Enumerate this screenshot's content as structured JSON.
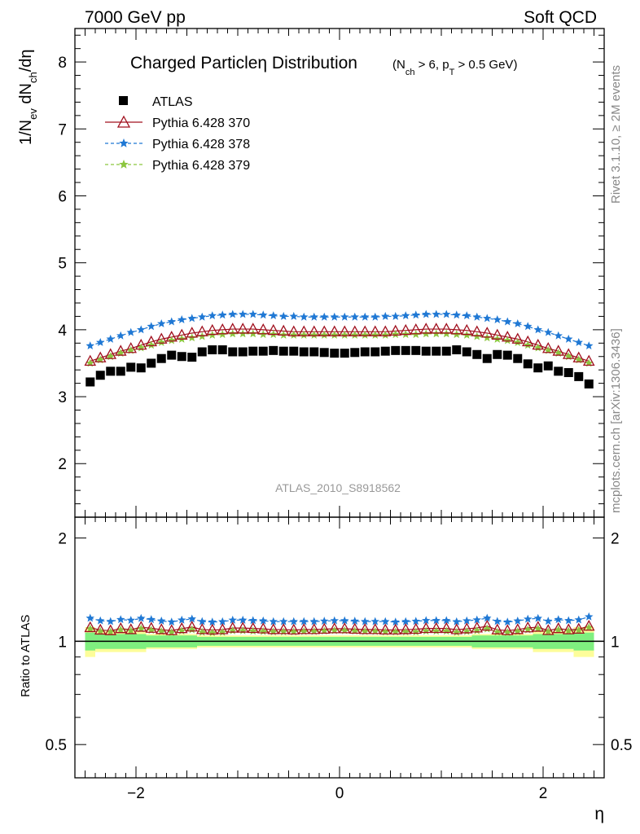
{
  "header": {
    "energy": "7000 GeV pp",
    "category": "Soft QCD"
  },
  "side": {
    "rivet": "Rivet 3.1.10, ≥ 2M events",
    "mcplots": "mcplots.cern.ch [arXiv:1306.3436]"
  },
  "colors": {
    "atlas": "#000000",
    "p370": "#a0101e",
    "p378": "#1f78d4",
    "p379": "#8cc63f",
    "band_inner": "#7fef7f",
    "band_outer": "#fdfd9a"
  },
  "chart_data": {
    "type": "scatter",
    "title": "Charged Particleη Distribution",
    "title_sub": "(N_ch > 6, p_T > 0.5 GeV)",
    "analysis": "ATLAS_2010_S8918562",
    "xlabel": "η",
    "ylabel": "1/N_ev dN_ch/dη",
    "ratio_ylabel": "Ratio to ATLAS",
    "xlim": [
      -2.6,
      2.6
    ],
    "ylim": [
      1.2,
      8.5
    ],
    "ratio_ylim": [
      0.4,
      2.3
    ],
    "ratio_scale": "log",
    "xticks": [
      -2,
      0,
      2
    ],
    "xtick_labels": [
      "−2",
      "0",
      "2"
    ],
    "yticks": [
      2,
      3,
      4,
      5,
      6,
      7,
      8
    ],
    "ratio_yticks": [
      0.5,
      1,
      2
    ],
    "legend_position": "top-left",
    "x": [
      -2.45,
      -2.35,
      -2.25,
      -2.15,
      -2.05,
      -1.95,
      -1.85,
      -1.75,
      -1.65,
      -1.55,
      -1.45,
      -1.35,
      -1.25,
      -1.15,
      -1.05,
      -0.95,
      -0.85,
      -0.75,
      -0.65,
      -0.55,
      -0.45,
      -0.35,
      -0.25,
      -0.15,
      -0.05,
      0.05,
      0.15,
      0.25,
      0.35,
      0.45,
      0.55,
      0.65,
      0.75,
      0.85,
      0.95,
      1.05,
      1.15,
      1.25,
      1.35,
      1.45,
      1.55,
      1.65,
      1.75,
      1.85,
      1.95,
      2.05,
      2.15,
      2.25,
      2.35,
      2.45
    ],
    "series": [
      {
        "name": "ATLAS",
        "marker": "square",
        "values": [
          3.22,
          3.32,
          3.38,
          3.38,
          3.44,
          3.43,
          3.5,
          3.57,
          3.62,
          3.6,
          3.59,
          3.67,
          3.7,
          3.7,
          3.67,
          3.67,
          3.68,
          3.68,
          3.69,
          3.68,
          3.68,
          3.67,
          3.67,
          3.66,
          3.65,
          3.65,
          3.66,
          3.67,
          3.67,
          3.68,
          3.69,
          3.69,
          3.69,
          3.68,
          3.68,
          3.68,
          3.7,
          3.67,
          3.63,
          3.57,
          3.63,
          3.62,
          3.57,
          3.49,
          3.43,
          3.46,
          3.38,
          3.36,
          3.3,
          3.19
        ]
      },
      {
        "name": "Pythia 6.428 370",
        "marker": "triangle",
        "values": [
          3.53,
          3.58,
          3.63,
          3.68,
          3.72,
          3.77,
          3.82,
          3.86,
          3.89,
          3.92,
          3.95,
          3.97,
          3.99,
          4.0,
          4.01,
          4.01,
          4.01,
          4.0,
          3.99,
          3.98,
          3.97,
          3.97,
          3.97,
          3.97,
          3.97,
          3.97,
          3.97,
          3.97,
          3.97,
          3.97,
          3.98,
          3.99,
          4.0,
          4.01,
          4.01,
          4.01,
          4.0,
          3.99,
          3.97,
          3.95,
          3.92,
          3.89,
          3.86,
          3.82,
          3.77,
          3.72,
          3.68,
          3.63,
          3.58,
          3.53
        ]
      },
      {
        "name": "Pythia 6.428 378",
        "marker": "star",
        "values": [
          3.76,
          3.81,
          3.86,
          3.91,
          3.96,
          4.0,
          4.05,
          4.09,
          4.12,
          4.15,
          4.17,
          4.19,
          4.21,
          4.22,
          4.23,
          4.23,
          4.23,
          4.22,
          4.21,
          4.2,
          4.2,
          4.19,
          4.19,
          4.19,
          4.19,
          4.19,
          4.19,
          4.19,
          4.19,
          4.2,
          4.2,
          4.21,
          4.22,
          4.23,
          4.23,
          4.23,
          4.22,
          4.21,
          4.19,
          4.17,
          4.15,
          4.12,
          4.09,
          4.05,
          4.0,
          3.96,
          3.91,
          3.86,
          3.81,
          3.76
        ]
      },
      {
        "name": "Pythia 6.428 379",
        "marker": "star",
        "values": [
          3.5,
          3.55,
          3.6,
          3.65,
          3.69,
          3.73,
          3.77,
          3.81,
          3.84,
          3.86,
          3.88,
          3.9,
          3.92,
          3.93,
          3.94,
          3.94,
          3.94,
          3.93,
          3.93,
          3.92,
          3.92,
          3.92,
          3.92,
          3.92,
          3.92,
          3.92,
          3.92,
          3.92,
          3.92,
          3.92,
          3.93,
          3.93,
          3.93,
          3.94,
          3.94,
          3.94,
          3.93,
          3.92,
          3.9,
          3.88,
          3.86,
          3.84,
          3.81,
          3.77,
          3.73,
          3.69,
          3.65,
          3.6,
          3.55,
          3.5
        ]
      }
    ],
    "ratio_bands": [
      {
        "x": [
          -2.5,
          -2.4
        ],
        "inner": [
          0.94,
          1.06
        ],
        "outer": [
          0.9,
          1.1
        ]
      },
      {
        "x": [
          -2.4,
          -1.9
        ],
        "inner": [
          0.95,
          1.05
        ],
        "outer": [
          0.93,
          1.07
        ]
      },
      {
        "x": [
          -1.9,
          -1.4
        ],
        "inner": [
          0.96,
          1.04
        ],
        "outer": [
          0.95,
          1.05
        ]
      },
      {
        "x": [
          -1.4,
          1.3
        ],
        "inner": [
          0.97,
          1.03
        ],
        "outer": [
          0.96,
          1.04
        ]
      },
      {
        "x": [
          1.3,
          1.9
        ],
        "inner": [
          0.96,
          1.04
        ],
        "outer": [
          0.95,
          1.05
        ]
      },
      {
        "x": [
          1.9,
          2.3
        ],
        "inner": [
          0.95,
          1.05
        ],
        "outer": [
          0.93,
          1.07
        ]
      },
      {
        "x": [
          2.3,
          2.5
        ],
        "inner": [
          0.94,
          1.06
        ],
        "outer": [
          0.9,
          1.1
        ]
      }
    ]
  }
}
